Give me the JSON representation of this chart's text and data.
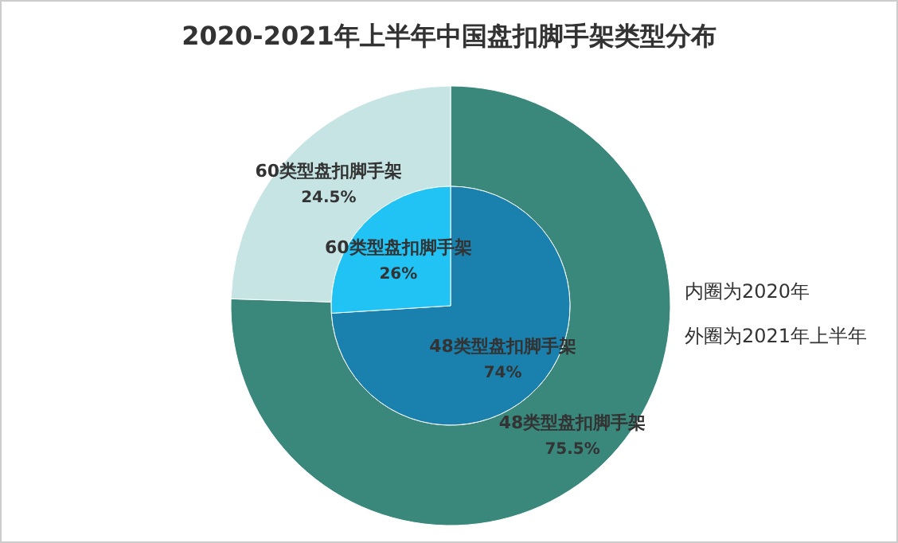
{
  "chart_data": [
    {
      "type": "donut",
      "title": "2020-2021年上半年中国盘扣脚手架类型分布",
      "categories": [
        "48类型盘扣脚手架",
        "60类型盘扣脚手架"
      ],
      "values": [
        75.5,
        24.5
      ],
      "colors": [
        "#3a877b",
        "#c6e4e3"
      ],
      "value_labels": [
        "75.5%",
        "24.5%"
      ],
      "annotations": [
        "内圈为2020年",
        "外圈为2021年上半年"
      ]
    },
    {
      "type": "pie",
      "categories": [
        "48类型盘扣脚手架",
        "60类型盘扣脚手架"
      ],
      "values": [
        74,
        26
      ],
      "colors": [
        "#1a80ad",
        "#21c2f4"
      ],
      "value_labels": [
        "74%",
        "26%"
      ]
    }
  ]
}
